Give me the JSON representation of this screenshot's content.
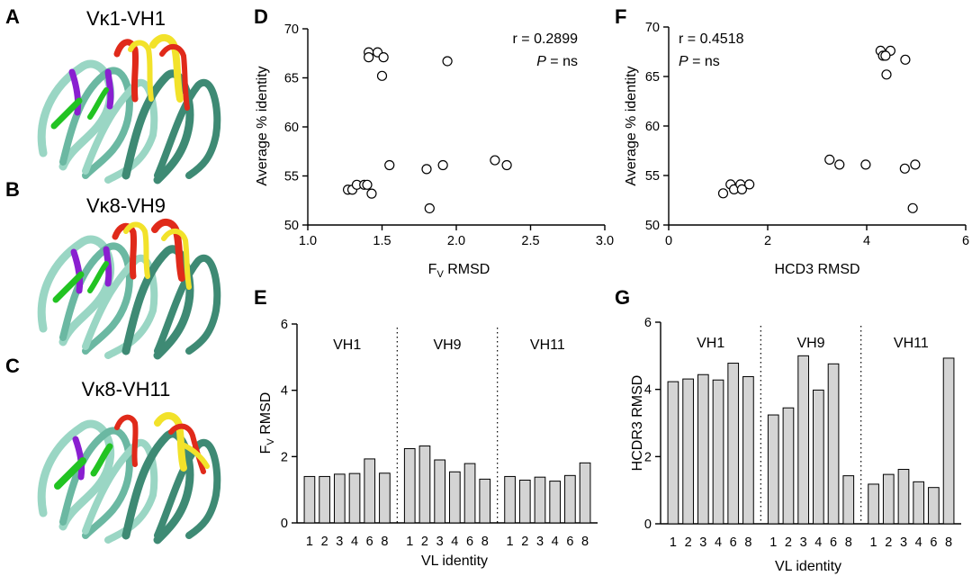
{
  "panels": {
    "A": {
      "letter": "A",
      "title": "Vκ1-VH1"
    },
    "B": {
      "letter": "B",
      "title": "Vκ8-VH9"
    },
    "C": {
      "letter": "C",
      "title": "Vκ8-VH11"
    }
  },
  "colors": {
    "ribbon_light": "#9ad6c4",
    "ribbon_dark": "#3e8a74",
    "ribbon_mid": "#6bb8a2",
    "loop_green": "#22c322",
    "loop_purple": "#8a1fd0",
    "loop_red": "#e02a1a",
    "loop_yellow": "#f2e22a",
    "bar_fill": "#d4d4d4",
    "marker": "#000000"
  },
  "chart_data": [
    {
      "id": "D",
      "letter": "D",
      "type": "scatter",
      "xlabel": "Fv RMSD",
      "xlabel_main": "F",
      "xlabel_sub": "V",
      "xlabel_rest": " RMSD",
      "ylabel": "Average % identity",
      "xlim": [
        1.0,
        3.0
      ],
      "ylim": [
        50,
        70
      ],
      "xticks": [
        "1.0",
        "1.5",
        "2.0",
        "2.5",
        "3.0"
      ],
      "xtick_values": [
        1.0,
        1.5,
        2.0,
        2.5,
        3.0
      ],
      "yticks": [
        "50",
        "55",
        "60",
        "65",
        "70"
      ],
      "ytick_values": [
        50,
        55,
        60,
        65,
        70
      ],
      "annotation_r": "r = 0.2899",
      "annotation_p_italic": "P",
      "annotation_p_rest": " = ns",
      "points": [
        {
          "x": 1.41,
          "y": 67.6
        },
        {
          "x": 1.47,
          "y": 67.6
        },
        {
          "x": 1.41,
          "y": 67.1
        },
        {
          "x": 1.51,
          "y": 67.1
        },
        {
          "x": 1.5,
          "y": 65.2
        },
        {
          "x": 1.94,
          "y": 66.7
        },
        {
          "x": 1.55,
          "y": 56.1
        },
        {
          "x": 1.8,
          "y": 55.7
        },
        {
          "x": 1.91,
          "y": 56.1
        },
        {
          "x": 2.26,
          "y": 56.6
        },
        {
          "x": 2.34,
          "y": 56.1
        },
        {
          "x": 1.27,
          "y": 53.6
        },
        {
          "x": 1.3,
          "y": 53.6
        },
        {
          "x": 1.33,
          "y": 54.1
        },
        {
          "x": 1.38,
          "y": 54.1
        },
        {
          "x": 1.4,
          "y": 54.1
        },
        {
          "x": 1.43,
          "y": 53.2
        },
        {
          "x": 1.82,
          "y": 51.7
        }
      ]
    },
    {
      "id": "F",
      "letter": "F",
      "type": "scatter",
      "xlabel": "HCD3 RMSD",
      "ylabel": "Average % identity",
      "xlim": [
        0,
        6
      ],
      "ylim": [
        50,
        70
      ],
      "xticks": [
        "0",
        "2",
        "4",
        "6"
      ],
      "xtick_values": [
        0,
        2,
        4,
        6
      ],
      "yticks": [
        "50",
        "55",
        "60",
        "65",
        "70"
      ],
      "ytick_values": [
        50,
        55,
        60,
        65,
        70
      ],
      "annotation_r": "r = 0.4518",
      "annotation_p_italic": "P",
      "annotation_p_rest": " = ns",
      "points": [
        {
          "x": 4.28,
          "y": 67.6
        },
        {
          "x": 4.48,
          "y": 67.6
        },
        {
          "x": 4.33,
          "y": 67.1
        },
        {
          "x": 4.38,
          "y": 67.1
        },
        {
          "x": 4.4,
          "y": 65.2
        },
        {
          "x": 4.78,
          "y": 66.7
        },
        {
          "x": 3.25,
          "y": 56.6
        },
        {
          "x": 3.45,
          "y": 56.1
        },
        {
          "x": 3.98,
          "y": 56.1
        },
        {
          "x": 4.98,
          "y": 56.1
        },
        {
          "x": 4.77,
          "y": 55.7
        },
        {
          "x": 4.93,
          "y": 51.7
        },
        {
          "x": 1.1,
          "y": 53.2
        },
        {
          "x": 1.25,
          "y": 54.1
        },
        {
          "x": 1.32,
          "y": 53.6
        },
        {
          "x": 1.45,
          "y": 54.1
        },
        {
          "x": 1.48,
          "y": 53.6
        },
        {
          "x": 1.63,
          "y": 54.1
        }
      ]
    },
    {
      "id": "E",
      "letter": "E",
      "type": "bar",
      "xlabel": "VL identity",
      "ylabel": "Fv RMSD",
      "ylabel_main": "F",
      "ylabel_sub": "V",
      "ylabel_rest": " RMSD",
      "ylim": [
        0,
        6
      ],
      "yticks": [
        "0",
        "2",
        "4",
        "6"
      ],
      "ytick_values": [
        0,
        2,
        4,
        6
      ],
      "groups": [
        {
          "name": "VH1",
          "categories": [
            "1",
            "2",
            "3",
            "4",
            "6",
            "8"
          ],
          "values": [
            1.4,
            1.4,
            1.47,
            1.49,
            1.93,
            1.5
          ]
        },
        {
          "name": "VH9",
          "categories": [
            "1",
            "2",
            "3",
            "4",
            "6",
            "8"
          ],
          "values": [
            2.24,
            2.32,
            1.9,
            1.54,
            1.79,
            1.32
          ]
        },
        {
          "name": "VH11",
          "categories": [
            "1",
            "2",
            "3",
            "4",
            "6",
            "8"
          ],
          "values": [
            1.4,
            1.29,
            1.38,
            1.26,
            1.43,
            1.81
          ]
        }
      ]
    },
    {
      "id": "G",
      "letter": "G",
      "type": "bar",
      "xlabel": "VL identity",
      "ylabel": "HCDR3 RMSD",
      "ylim": [
        0,
        6
      ],
      "yticks": [
        "0",
        "2",
        "4",
        "6"
      ],
      "ytick_values": [
        0,
        2,
        4,
        6
      ],
      "groups": [
        {
          "name": "VH1",
          "categories": [
            "1",
            "2",
            "3",
            "4",
            "6",
            "8"
          ],
          "values": [
            4.23,
            4.31,
            4.44,
            4.28,
            4.78,
            4.38
          ]
        },
        {
          "name": "VH9",
          "categories": [
            "1",
            "2",
            "3",
            "4",
            "6",
            "8"
          ],
          "values": [
            3.24,
            3.45,
            5.0,
            3.98,
            4.76,
            1.43
          ]
        },
        {
          "name": "VH11",
          "categories": [
            "1",
            "2",
            "3",
            "4",
            "6",
            "8"
          ],
          "values": [
            1.18,
            1.47,
            1.62,
            1.25,
            1.08,
            4.93
          ]
        }
      ]
    }
  ]
}
